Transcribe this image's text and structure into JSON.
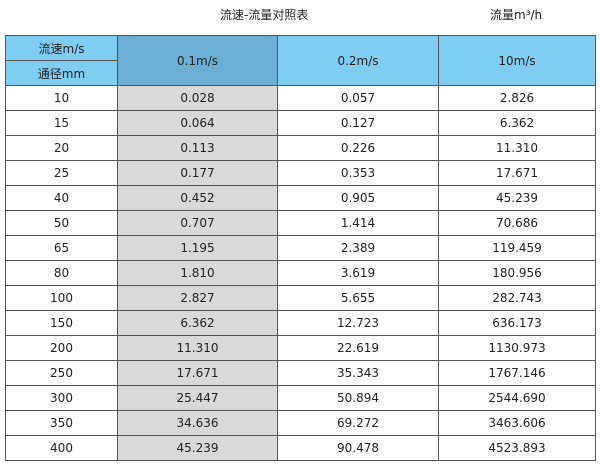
{
  "title": "流速-流量对照表",
  "unit_label": "流量m³/h",
  "header": {
    "velocity_label": "流速m/s",
    "diameter_label": "通径mm",
    "columns": [
      "0.1m/s",
      "0.2m/s",
      "10m/s"
    ]
  },
  "colors": {
    "header": "#80cdf4",
    "header_selected": "#6bb0d4",
    "selected_column": "#d9d9d9"
  },
  "rows": [
    [
      "10",
      "0.028",
      "0.057",
      "2.826"
    ],
    [
      "15",
      "0.064",
      "0.127",
      "6.362"
    ],
    [
      "20",
      "0.113",
      "0.226",
      "11.310"
    ],
    [
      "25",
      "0.177",
      "0.353",
      "17.671"
    ],
    [
      "40",
      "0.452",
      "0.905",
      "45.239"
    ],
    [
      "50",
      "0.707",
      "1.414",
      "70.686"
    ],
    [
      "65",
      "1.195",
      "2.389",
      "119.459"
    ],
    [
      "80",
      "1.810",
      "3.619",
      "180.956"
    ],
    [
      "100",
      "2.827",
      "5.655",
      "282.743"
    ],
    [
      "150",
      "6.362",
      "12.723",
      "636.173"
    ],
    [
      "200",
      "11.310",
      "22.619",
      "1130.973"
    ],
    [
      "250",
      "17.671",
      "35.343",
      "1767.146"
    ],
    [
      "300",
      "25.447",
      "50.894",
      "2544.690"
    ],
    [
      "350",
      "34.636",
      "69.272",
      "3463.606"
    ],
    [
      "400",
      "45.239",
      "90.478",
      "4523.893"
    ]
  ]
}
